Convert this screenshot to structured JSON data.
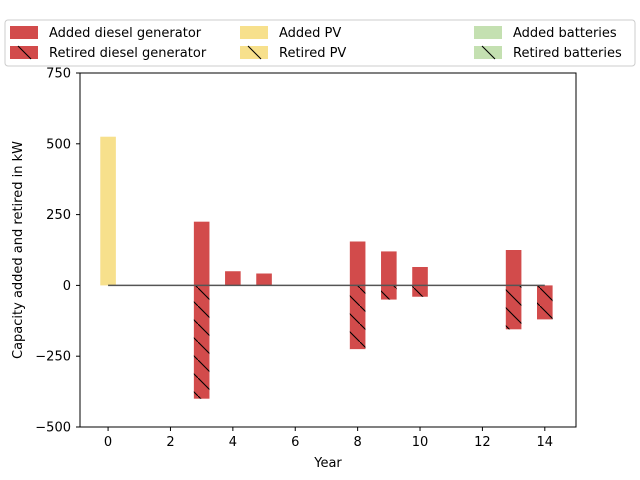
{
  "chart_data": {
    "type": "bar",
    "xlabel": "Year",
    "ylabel": "Capacity added and retired in kW",
    "xlim": [
      -0.9,
      15.0
    ],
    "ylim": [
      -500,
      750
    ],
    "xticks": [
      0,
      2,
      4,
      6,
      8,
      10,
      12,
      14
    ],
    "yticks": [
      -500,
      -250,
      0,
      250,
      500,
      750
    ],
    "bar_width": 0.5,
    "legend": {
      "placement": "top",
      "columns": 3,
      "entries": [
        {
          "label": "Added diesel generator",
          "series": "added_diesel"
        },
        {
          "label": "Added PV",
          "series": "added_pv"
        },
        {
          "label": "Added batteries",
          "series": "added_batteries"
        },
        {
          "label": "Retired diesel generator",
          "series": "retired_diesel"
        },
        {
          "label": "Retired PV",
          "series": "retired_pv"
        },
        {
          "label": "Retired batteries",
          "series": "retired_batteries"
        }
      ]
    },
    "series": [
      {
        "key": "added_diesel",
        "name": "Added diesel generator",
        "color": "#d24b4b",
        "hatch": false,
        "points": [
          {
            "x": 3,
            "y": 225
          },
          {
            "x": 4,
            "y": 50
          },
          {
            "x": 5,
            "y": 42
          },
          {
            "x": 8,
            "y": 155
          },
          {
            "x": 9,
            "y": 120
          },
          {
            "x": 10,
            "y": 65
          },
          {
            "x": 13,
            "y": 125
          }
        ]
      },
      {
        "key": "added_pv",
        "name": "Added PV",
        "color": "#f7e08c",
        "hatch": false,
        "points": [
          {
            "x": 0,
            "y": 525
          }
        ]
      },
      {
        "key": "added_batteries",
        "name": "Added batteries",
        "color": "#c4e0b1",
        "hatch": false,
        "points": []
      },
      {
        "key": "retired_diesel",
        "name": "Retired diesel generator",
        "color": "#d24b4b",
        "hatch": true,
        "points": [
          {
            "x": 3,
            "y": -400
          },
          {
            "x": 8,
            "y": -225
          },
          {
            "x": 9,
            "y": -50
          },
          {
            "x": 10,
            "y": -40
          },
          {
            "x": 13,
            "y": -155
          },
          {
            "x": 14,
            "y": -120
          }
        ]
      },
      {
        "key": "retired_pv",
        "name": "Retired PV",
        "color": "#f7e08c",
        "hatch": true,
        "points": []
      },
      {
        "key": "retired_batteries",
        "name": "Retired batteries",
        "color": "#c4e0b1",
        "hatch": true,
        "points": []
      }
    ],
    "baseline": {
      "x_start": 0,
      "x_end": 14,
      "y": 0,
      "color": "#555555"
    },
    "grid": false
  }
}
